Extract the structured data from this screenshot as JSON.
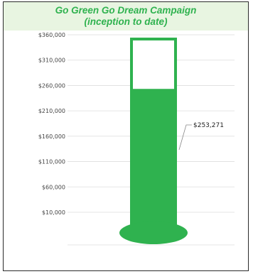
{
  "chart_data": {
    "type": "bar",
    "title": "Go Green Go Dream Campaign",
    "subtitle": "(inception to date)",
    "goal": 360000,
    "raised": 253271,
    "raised_label": "$253,271",
    "ylim": [
      10000,
      360000
    ],
    "y_ticks": [
      360000,
      310000,
      260000,
      210000,
      160000,
      110000,
      60000,
      10000
    ],
    "y_tick_labels": [
      "$360,000",
      "$310,000",
      "$260,000",
      "$210,000",
      "$160,000",
      "$110,000",
      "$60,000",
      "$10,000"
    ],
    "grid": true,
    "legend": "none"
  },
  "colors": {
    "fill": "#2fb24f",
    "title": "#2fb24f",
    "title_band": "#e8f5e1",
    "grid": "#dddddd"
  }
}
